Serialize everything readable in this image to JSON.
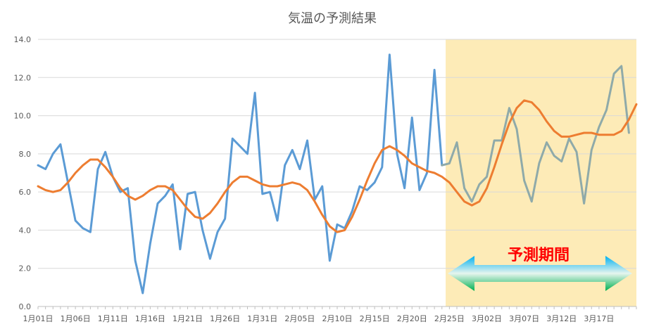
{
  "chart_data": {
    "type": "line",
    "title": "気温の予測結果",
    "xlabel": "",
    "ylabel": "",
    "ylim": [
      0,
      14
    ],
    "yticks": [
      "0.0",
      "2.0",
      "4.0",
      "6.0",
      "8.0",
      "10.0",
      "12.0",
      "14.0"
    ],
    "xtick_labels": [
      "1月01日",
      "1月06日",
      "1月11日",
      "1月16日",
      "1月21日",
      "1月26日",
      "1月31日",
      "2月05日",
      "2月10日",
      "2月15日",
      "2月20日",
      "2月25日",
      "3月02日",
      "3月07日",
      "3月12日",
      "3月17日"
    ],
    "grid": "horizontal",
    "forecast_period": {
      "label": "予測期間",
      "start_index": 55,
      "end_index": 81,
      "shade_color": "#fdebb7",
      "label_color": "#ff0000"
    },
    "series": [
      {
        "name": "",
        "color": "#5b9bd5",
        "values": [
          7.4,
          7.2,
          8.0,
          8.5,
          6.5,
          4.5,
          4.1,
          3.9,
          7.2,
          8.1,
          6.8,
          6.0,
          6.2,
          2.4,
          0.7,
          3.3,
          5.4,
          5.8,
          6.4,
          3.0,
          5.9,
          6.0,
          4.0,
          2.5,
          3.9,
          4.6,
          8.8,
          8.4,
          8.0,
          11.2,
          5.9,
          6.0,
          4.5,
          7.4,
          8.2,
          7.2,
          8.7,
          5.6,
          6.3,
          2.4,
          4.3,
          4.1,
          5.0,
          6.3,
          6.1,
          6.5,
          7.3,
          13.2,
          8.0,
          6.2,
          9.9,
          6.1,
          7.0,
          12.4,
          7.4
        ]
      },
      {
        "name": "",
        "color": "#8faaa9",
        "values": [
          7.4,
          7.5,
          8.6,
          6.2,
          5.5,
          6.4,
          6.8,
          8.7,
          8.7,
          10.4,
          9.3,
          6.6,
          5.5,
          7.5,
          8.6,
          7.9,
          7.6,
          8.8,
          8.1,
          5.4,
          8.2,
          9.4,
          10.3,
          12.2,
          12.6,
          9.1
        ]
      },
      {
        "name": "",
        "color": "#ed7d31",
        "values": [
          6.3,
          6.1,
          6.0,
          6.1,
          6.5,
          7.0,
          7.4,
          7.7,
          7.7,
          7.3,
          6.8,
          6.2,
          5.8,
          5.6,
          5.8,
          6.1,
          6.3,
          6.3,
          6.1,
          5.6,
          5.1,
          4.7,
          4.6,
          4.9,
          5.4,
          6.0,
          6.5,
          6.8,
          6.8,
          6.6,
          6.4,
          6.3,
          6.3,
          6.4,
          6.5,
          6.4,
          6.1,
          5.5,
          4.8,
          4.2,
          3.9,
          4.0,
          4.7,
          5.6,
          6.6,
          7.5,
          8.2,
          8.4,
          8.2,
          7.9,
          7.5,
          7.3,
          7.1,
          7.0,
          6.8,
          6.5,
          6.0,
          5.5,
          5.3,
          5.5,
          6.2,
          7.3,
          8.5,
          9.6,
          10.4,
          10.8,
          10.7,
          10.3,
          9.7,
          9.2,
          8.9,
          8.9,
          9.0,
          9.1,
          9.1,
          9.0,
          9.0,
          9.0,
          9.2,
          9.8,
          10.6
        ]
      }
    ]
  }
}
